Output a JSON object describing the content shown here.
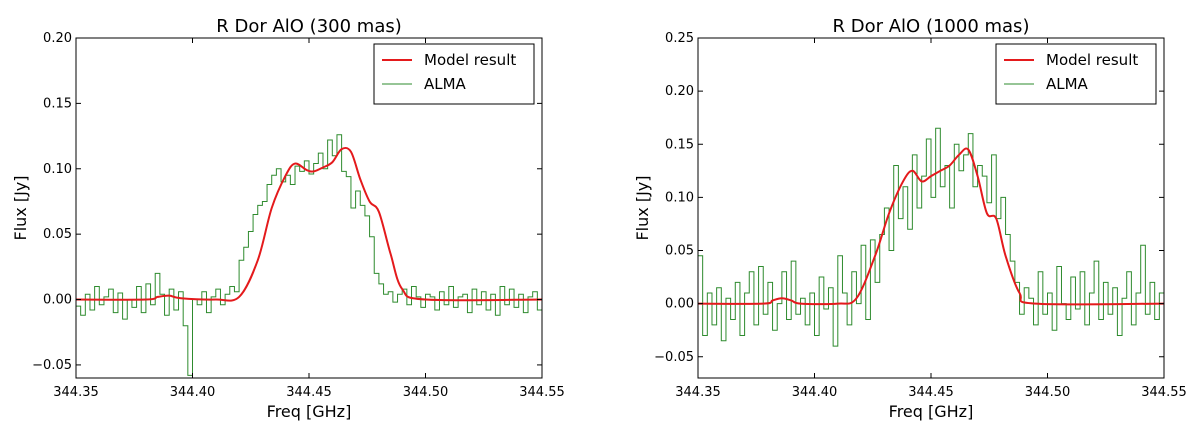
{
  "chart_data": [
    {
      "type": "line",
      "title": "R Dor AlO (300 mas)",
      "xlabel": "Freq [GHz]",
      "ylabel": "Flux [Jy]",
      "xlim": [
        344.35,
        344.55
      ],
      "ylim": [
        -0.06,
        0.2
      ],
      "xticks": [
        344.35,
        344.4,
        344.45,
        344.5,
        344.55
      ],
      "xtick_labels": [
        "344.35",
        "344.40",
        "344.45",
        "344.50",
        "344.55"
      ],
      "yticks": [
        -0.05,
        0.0,
        0.05,
        0.1,
        0.15,
        0.2
      ],
      "ytick_labels": [
        "−0.05",
        "0.00",
        "0.05",
        "0.10",
        "0.15",
        "0.20"
      ],
      "grid": false,
      "legend_position": "top-right",
      "series": [
        {
          "name": "Model result",
          "color": "#e41a1c",
          "style": "smooth",
          "x": [
            344.35,
            344.38,
            344.385,
            344.39,
            344.395,
            344.41,
            344.42,
            344.428,
            344.434,
            344.44,
            344.444,
            344.449,
            344.452,
            344.456,
            344.46,
            344.464,
            344.468,
            344.472,
            344.476,
            344.48,
            344.485,
            344.49,
            344.5,
            344.55
          ],
          "y": [
            0.0,
            0.0,
            0.002,
            0.003,
            0.001,
            0.0,
            0.002,
            0.03,
            0.07,
            0.095,
            0.104,
            0.099,
            0.098,
            0.101,
            0.105,
            0.115,
            0.113,
            0.092,
            0.075,
            0.067,
            0.035,
            0.008,
            0.0,
            0.0
          ]
        },
        {
          "name": "ALMA",
          "color": "#2e8b2e",
          "style": "step",
          "x": [
            344.35,
            344.352,
            344.354,
            344.356,
            344.358,
            344.36,
            344.362,
            344.364,
            344.366,
            344.368,
            344.37,
            344.372,
            344.374,
            344.376,
            344.378,
            344.38,
            344.382,
            344.384,
            344.386,
            344.388,
            344.39,
            344.392,
            344.394,
            344.396,
            344.398,
            344.4,
            344.402,
            344.404,
            344.406,
            344.408,
            344.41,
            344.412,
            344.414,
            344.416,
            344.418,
            344.42,
            344.422,
            344.424,
            344.426,
            344.428,
            344.43,
            344.432,
            344.434,
            344.436,
            344.438,
            344.44,
            344.442,
            344.444,
            344.446,
            344.448,
            344.45,
            344.452,
            344.454,
            344.456,
            344.458,
            344.46,
            344.462,
            344.464,
            344.466,
            344.468,
            344.47,
            344.472,
            344.474,
            344.476,
            344.478,
            344.48,
            344.482,
            344.484,
            344.486,
            344.488,
            344.49,
            344.492,
            344.494,
            344.496,
            344.498,
            344.5,
            344.502,
            344.504,
            344.506,
            344.508,
            344.51,
            344.512,
            344.514,
            344.516,
            344.518,
            344.52,
            344.522,
            344.524,
            344.526,
            344.528,
            344.53,
            344.532,
            344.534,
            344.536,
            344.538,
            344.54,
            344.542,
            344.544,
            344.546,
            344.548
          ],
          "y": [
            -0.005,
            -0.012,
            0.004,
            -0.008,
            0.01,
            -0.004,
            0.002,
            0.008,
            -0.01,
            0.005,
            -0.015,
            0.0,
            -0.006,
            0.01,
            -0.01,
            0.012,
            -0.004,
            0.02,
            0.004,
            -0.012,
            0.008,
            -0.008,
            0.006,
            -0.02,
            -0.058,
            0.0,
            -0.004,
            0.006,
            -0.01,
            0.002,
            0.008,
            -0.004,
            0.004,
            0.01,
            0.006,
            0.03,
            0.04,
            0.052,
            0.065,
            0.072,
            0.075,
            0.088,
            0.095,
            0.1,
            0.09,
            0.095,
            0.088,
            0.102,
            0.098,
            0.106,
            0.096,
            0.104,
            0.112,
            0.1,
            0.122,
            0.11,
            0.126,
            0.098,
            0.094,
            0.07,
            0.083,
            0.072,
            0.064,
            0.048,
            0.02,
            0.012,
            0.004,
            0.006,
            -0.002,
            0.004,
            0.008,
            -0.004,
            0.01,
            0.002,
            -0.006,
            0.004,
            0.002,
            -0.008,
            0.006,
            -0.004,
            0.01,
            -0.006,
            0.002,
            0.004,
            -0.01,
            0.008,
            -0.004,
            0.006,
            -0.008,
            0.004,
            -0.012,
            0.01,
            -0.004,
            0.008,
            -0.006,
            0.004,
            -0.01,
            0.002,
            0.006,
            -0.008
          ]
        }
      ]
    },
    {
      "type": "line",
      "title": "R Dor AlO (1000 mas)",
      "xlabel": "Freq [GHz]",
      "ylabel": "Flux [Jy]",
      "xlim": [
        344.35,
        344.55
      ],
      "ylim": [
        -0.07,
        0.25
      ],
      "xticks": [
        344.35,
        344.4,
        344.45,
        344.5,
        344.55
      ],
      "xtick_labels": [
        "344.35",
        "344.40",
        "344.45",
        "344.50",
        "344.55"
      ],
      "yticks": [
        -0.05,
        0.0,
        0.05,
        0.1,
        0.15,
        0.2,
        0.25
      ],
      "ytick_labels": [
        "−0.05",
        "0.00",
        "0.05",
        "0.10",
        "0.15",
        "0.20",
        "0.25"
      ],
      "grid": false,
      "legend_position": "top-right",
      "series": [
        {
          "name": "Model result",
          "color": "#e41a1c",
          "style": "smooth",
          "x": [
            344.35,
            344.378,
            344.382,
            344.386,
            344.39,
            344.394,
            344.41,
            344.418,
            344.426,
            344.432,
            344.438,
            344.442,
            344.446,
            344.45,
            344.454,
            344.458,
            344.462,
            344.466,
            344.47,
            344.474,
            344.478,
            344.482,
            344.488,
            344.495,
            344.55
          ],
          "y": [
            0.0,
            0.0,
            0.003,
            0.005,
            0.003,
            0.0,
            0.0,
            0.005,
            0.045,
            0.085,
            0.115,
            0.125,
            0.115,
            0.12,
            0.125,
            0.13,
            0.14,
            0.145,
            0.12,
            0.085,
            0.08,
            0.045,
            0.01,
            0.0,
            0.0
          ]
        },
        {
          "name": "ALMA",
          "color": "#2e8b2e",
          "style": "step",
          "x": [
            344.35,
            344.352,
            344.354,
            344.356,
            344.358,
            344.36,
            344.362,
            344.364,
            344.366,
            344.368,
            344.37,
            344.372,
            344.374,
            344.376,
            344.378,
            344.38,
            344.382,
            344.384,
            344.386,
            344.388,
            344.39,
            344.392,
            344.394,
            344.396,
            344.398,
            344.4,
            344.402,
            344.404,
            344.406,
            344.408,
            344.41,
            344.412,
            344.414,
            344.416,
            344.418,
            344.42,
            344.422,
            344.424,
            344.426,
            344.428,
            344.43,
            344.432,
            344.434,
            344.436,
            344.438,
            344.44,
            344.442,
            344.444,
            344.446,
            344.448,
            344.45,
            344.452,
            344.454,
            344.456,
            344.458,
            344.46,
            344.462,
            344.464,
            344.466,
            344.468,
            344.47,
            344.472,
            344.474,
            344.476,
            344.478,
            344.48,
            344.482,
            344.484,
            344.486,
            344.488,
            344.49,
            344.492,
            344.494,
            344.496,
            344.498,
            344.5,
            344.502,
            344.504,
            344.506,
            344.508,
            344.51,
            344.512,
            344.514,
            344.516,
            344.518,
            344.52,
            344.522,
            344.524,
            344.526,
            344.528,
            344.53,
            344.532,
            344.534,
            344.536,
            344.538,
            344.54,
            344.542,
            344.544,
            344.546,
            344.548
          ],
          "y": [
            0.045,
            -0.03,
            0.01,
            -0.02,
            0.015,
            -0.035,
            0.005,
            -0.015,
            0.02,
            -0.03,
            0.01,
            0.03,
            -0.02,
            0.035,
            -0.01,
            0.02,
            -0.025,
            0.0,
            0.03,
            -0.015,
            0.04,
            -0.01,
            0.005,
            -0.02,
            0.01,
            -0.03,
            0.025,
            -0.005,
            0.015,
            -0.04,
            0.045,
            0.01,
            -0.02,
            0.03,
            0.0,
            0.055,
            -0.015,
            0.06,
            0.02,
            0.065,
            0.09,
            0.05,
            0.13,
            0.08,
            0.11,
            0.07,
            0.14,
            0.09,
            0.12,
            0.155,
            0.1,
            0.165,
            0.11,
            0.13,
            0.09,
            0.15,
            0.125,
            0.14,
            0.16,
            0.11,
            0.13,
            0.12,
            0.095,
            0.14,
            0.08,
            0.1,
            0.065,
            0.04,
            0.02,
            -0.01,
            0.015,
            0.005,
            -0.02,
            0.03,
            -0.01,
            0.01,
            -0.025,
            0.035,
            0.0,
            -0.015,
            0.025,
            -0.005,
            0.03,
            -0.02,
            0.01,
            0.04,
            -0.015,
            0.02,
            -0.01,
            0.015,
            -0.03,
            0.005,
            0.03,
            -0.02,
            0.01,
            0.055,
            -0.01,
            0.02,
            -0.015,
            0.01
          ]
        }
      ]
    }
  ]
}
